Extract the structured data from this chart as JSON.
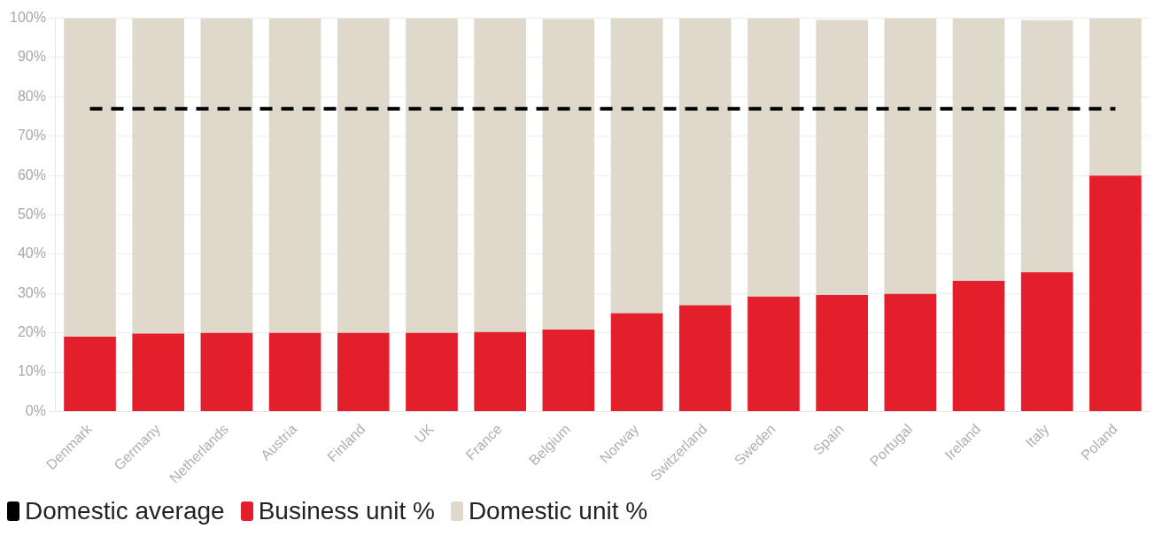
{
  "chart_data": {
    "type": "bar",
    "stacked": true,
    "categories": [
      "Denmark",
      "Germany",
      "Netherlands",
      "Austria",
      "Finland",
      "UK",
      "France",
      "Belgium",
      "Norway",
      "Switzerland",
      "Sweden",
      "Spain",
      "Portugal",
      "Ireland",
      "Italy",
      "Poland"
    ],
    "series": [
      {
        "name": "Domestic average",
        "type": "line",
        "color": "#000000",
        "line_style": "dashed",
        "marker": "none",
        "values": [
          77,
          77,
          77,
          77,
          77,
          77,
          77,
          77,
          77,
          77,
          77,
          77,
          77,
          77,
          77,
          77
        ]
      },
      {
        "name": "Business unit %",
        "color": "#e41f2c",
        "values": [
          19,
          19.8,
          20,
          20,
          20,
          20,
          20.2,
          20.8,
          25,
          27,
          29.2,
          29.6,
          29.9,
          33.2,
          35.4,
          60
        ]
      },
      {
        "name": "Domestic unit %",
        "color": "#dfd9cc",
        "values": [
          81,
          80.2,
          80,
          80,
          80,
          80,
          79.8,
          79,
          75,
          73,
          70.8,
          70,
          70.1,
          66.8,
          64.1,
          40
        ]
      }
    ],
    "ylim": [
      0,
      100
    ],
    "yticks": [
      {
        "value": 0,
        "label": "0%"
      },
      {
        "value": 10,
        "label": "10%"
      },
      {
        "value": 20,
        "label": "20%"
      },
      {
        "value": 30,
        "label": "30%"
      },
      {
        "value": 40,
        "label": "40%"
      },
      {
        "value": 50,
        "label": "50%"
      },
      {
        "value": 60,
        "label": "60%"
      },
      {
        "value": 70,
        "label": "70%"
      },
      {
        "value": 80,
        "label": "80%"
      },
      {
        "value": 90,
        "label": "90%"
      },
      {
        "value": 100,
        "label": "100%"
      }
    ],
    "grid": "y",
    "legend": "bottom left"
  }
}
